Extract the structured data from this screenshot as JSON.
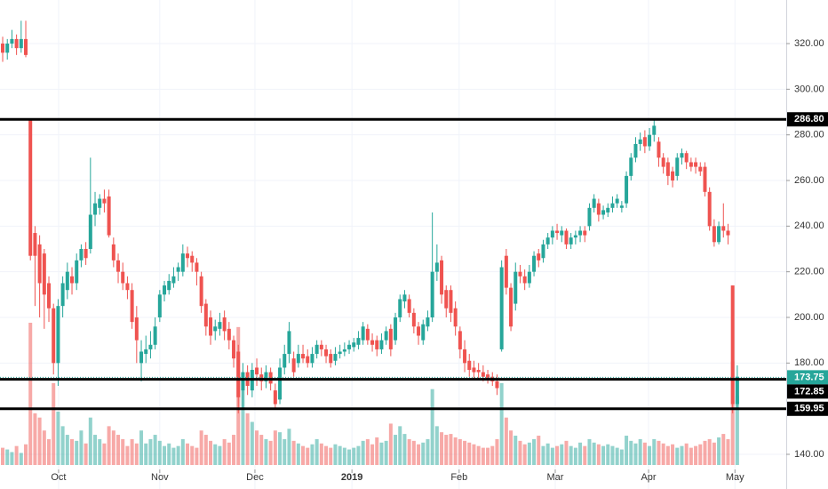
{
  "chart_data": {
    "type": "candlestick",
    "up_color": "#26a69a",
    "down_color": "#ef5350",
    "grid": true,
    "xlim": [
      -0.58,
      169.6
    ],
    "ylim": [
      124.8,
      339.1
    ],
    "xticks": [
      {
        "value": 12.1,
        "label": "Oct"
      },
      {
        "value": 34,
        "label": "Nov"
      },
      {
        "value": 54.6,
        "label": "Dec"
      },
      {
        "value": 75.6,
        "label": "2019"
      },
      {
        "value": 98.8,
        "label": "Feb"
      },
      {
        "value": 119.6,
        "label": "Mar"
      },
      {
        "value": 139.8,
        "label": "Apr"
      },
      {
        "value": 158.5,
        "label": "May"
      }
    ],
    "yticks": [
      {
        "value": 140,
        "label": "140.00"
      },
      {
        "value": 180,
        "label": "180.00"
      },
      {
        "value": 200,
        "label": "200.00"
      },
      {
        "value": 220,
        "label": "220.00"
      },
      {
        "value": 240,
        "label": "240.00"
      },
      {
        "value": 260,
        "label": "260.00"
      },
      {
        "value": 280,
        "label": "280.00"
      },
      {
        "value": 300,
        "label": "300.00"
      },
      {
        "value": 320,
        "label": "320.00"
      }
    ],
    "price_lines": [
      {
        "value": 286.8,
        "label": "286.80"
      },
      {
        "value": 172.85,
        "label": "172.85"
      },
      {
        "value": 159.95,
        "label": "159.95"
      }
    ],
    "last_price": {
      "value": 173.75,
      "label": "173.75"
    },
    "open": [
      320,
      316,
      320,
      322,
      318,
      322,
      287,
      237,
      232,
      228,
      215,
      204,
      180,
      205,
      212,
      218,
      215,
      225,
      230,
      230,
      245,
      248,
      252,
      253,
      232,
      225,
      220,
      215,
      212,
      200,
      180,
      184,
      186,
      188,
      200,
      210,
      212,
      215,
      220,
      220,
      228,
      227,
      224,
      218,
      206,
      200,
      194,
      195,
      200,
      195,
      190,
      185,
      168,
      176,
      168,
      178,
      175,
      172,
      176,
      168,
      164,
      178,
      184,
      182,
      180,
      184,
      183,
      180,
      184,
      188,
      186,
      184,
      181,
      184,
      185,
      186,
      187,
      188,
      190,
      195,
      190,
      190,
      186,
      190,
      195,
      190,
      200,
      207,
      208,
      202,
      196,
      190,
      196,
      200,
      220,
      225,
      212,
      212,
      204,
      194,
      186,
      181,
      178,
      177,
      176,
      175,
      174,
      172,
      186,
      227,
      213,
      206,
      220,
      218,
      215,
      220,
      228,
      226,
      232,
      235,
      238,
      236,
      238,
      232,
      235,
      236,
      238,
      240,
      248,
      250,
      245,
      246,
      248,
      250,
      248,
      250,
      262,
      270,
      276,
      279,
      275,
      280,
      277,
      270,
      268,
      264,
      262,
      270,
      272,
      268,
      268,
      266,
      266,
      255,
      240,
      233,
      240,
      238,
      214,
      162
    ],
    "high": [
      323,
      322,
      326,
      324,
      330,
      330,
      287,
      240,
      236,
      230,
      218,
      206,
      208,
      218,
      224,
      222,
      228,
      232,
      233,
      270,
      255,
      254,
      256,
      256,
      235,
      228,
      224,
      218,
      215,
      205,
      190,
      192,
      194,
      200,
      212,
      216,
      219,
      222,
      224,
      232,
      231,
      229,
      226,
      220,
      208,
      203,
      199,
      202,
      203,
      198,
      192,
      188,
      180,
      179,
      180,
      182,
      178,
      179,
      178,
      171,
      182,
      188,
      198,
      185,
      188,
      188,
      186,
      187,
      190,
      190,
      188,
      186,
      187,
      188,
      189,
      190,
      191,
      194,
      198,
      197,
      193,
      192,
      193,
      196,
      197,
      202,
      210,
      212,
      210,
      204,
      198,
      199,
      203,
      246,
      232,
      227,
      214,
      214,
      207,
      196,
      190,
      184,
      181,
      180,
      179,
      177,
      176,
      175,
      225,
      230,
      215,
      224,
      223,
      221,
      223,
      229,
      230,
      234,
      237,
      240,
      241,
      240,
      239,
      237,
      238,
      240,
      240,
      250,
      254,
      252,
      249,
      250,
      253,
      254,
      251,
      264,
      272,
      279,
      281,
      282,
      283,
      287,
      279,
      272,
      270,
      266,
      272,
      274,
      273,
      270,
      270,
      268,
      268,
      257,
      243,
      242,
      250,
      241,
      214,
      179
    ],
    "low": [
      312,
      313,
      318,
      315,
      316,
      314,
      225,
      205,
      200,
      195,
      198,
      175,
      170,
      200,
      208,
      210,
      212,
      222,
      223,
      228,
      240,
      245,
      246,
      235,
      222,
      215,
      212,
      208,
      195,
      180,
      172,
      180,
      182,
      186,
      198,
      207,
      210,
      213,
      216,
      218,
      222,
      220,
      214,
      202,
      192,
      188,
      190,
      192,
      190,
      186,
      178,
      158,
      160,
      166,
      165,
      170,
      168,
      169,
      168,
      160,
      162,
      175,
      180,
      174,
      178,
      180,
      178,
      178,
      182,
      183,
      180,
      178,
      179,
      182,
      183,
      184,
      185,
      186,
      188,
      188,
      185,
      183,
      184,
      188,
      183,
      188,
      198,
      204,
      200,
      193,
      188,
      188,
      194,
      198,
      216,
      206,
      200,
      198,
      192,
      182,
      176,
      174,
      173,
      173,
      172,
      171,
      170,
      166,
      185,
      210,
      194,
      203,
      215,
      212,
      213,
      218,
      222,
      224,
      230,
      232,
      234,
      233,
      230,
      230,
      232,
      233,
      233,
      238,
      246,
      242,
      243,
      244,
      246,
      248,
      246,
      248,
      260,
      268,
      273,
      272,
      273,
      277,
      266,
      263,
      258,
      257,
      260,
      267,
      265,
      264,
      263,
      262,
      253,
      238,
      231,
      232,
      235,
      232,
      158,
      160
    ],
    "close": [
      316,
      320,
      322,
      318,
      322,
      315,
      227,
      227,
      215,
      210,
      204,
      180,
      205,
      215,
      220,
      215,
      225,
      230,
      226,
      245,
      250,
      252,
      250,
      236,
      225,
      220,
      215,
      212,
      198,
      190,
      185,
      186,
      188,
      196,
      210,
      214,
      216,
      218,
      222,
      228,
      226,
      224,
      220,
      205,
      196,
      192,
      196,
      198,
      194,
      190,
      182,
      165,
      176,
      170,
      177,
      175,
      172,
      176,
      171,
      162,
      178,
      184,
      194,
      176,
      184,
      182,
      180,
      184,
      188,
      186,
      183,
      180,
      184,
      185,
      186,
      188,
      189,
      191,
      196,
      190,
      188,
      186,
      190,
      194,
      186,
      200,
      208,
      210,
      202,
      196,
      192,
      197,
      200,
      220,
      224,
      210,
      204,
      202,
      196,
      186,
      180,
      177,
      176,
      176,
      174,
      173,
      172,
      169,
      222,
      213,
      196,
      220,
      218,
      215,
      220,
      227,
      225,
      232,
      235,
      238,
      237,
      238,
      232,
      235,
      236,
      238,
      236,
      248,
      252,
      245,
      247,
      248,
      250,
      252,
      249,
      262,
      270,
      276,
      278,
      275,
      280,
      284,
      270,
      266,
      262,
      260,
      270,
      272,
      268,
      266,
      266,
      264,
      255,
      240,
      233,
      240,
      238,
      236,
      162,
      174
    ],
    "volume": [
      20,
      18,
      15,
      22,
      14,
      24,
      165,
      60,
      55,
      40,
      30,
      95,
      62,
      45,
      35,
      30,
      28,
      40,
      25,
      55,
      35,
      30,
      25,
      45,
      40,
      35,
      30,
      22,
      30,
      25,
      40,
      25,
      30,
      35,
      28,
      22,
      25,
      20,
      22,
      30,
      25,
      22,
      20,
      40,
      35,
      28,
      24,
      22,
      30,
      26,
      35,
      160,
      95,
      60,
      50,
      40,
      35,
      30,
      28,
      40,
      38,
      30,
      42,
      28,
      25,
      22,
      20,
      24,
      30,
      25,
      22,
      20,
      24,
      22,
      20,
      18,
      20,
      22,
      28,
      30,
      24,
      32,
      26,
      28,
      48,
      35,
      45,
      36,
      30,
      28,
      24,
      26,
      30,
      88,
      45,
      38,
      35,
      36,
      32,
      30,
      28,
      26,
      24,
      22,
      20,
      20,
      22,
      30,
      95,
      55,
      40,
      34,
      28,
      24,
      26,
      30,
      34,
      22,
      25,
      20,
      22,
      24,
      28,
      22,
      20,
      26,
      22,
      30,
      26,
      24,
      22,
      24,
      22,
      20,
      18,
      34,
      28,
      25,
      30,
      26,
      22,
      30,
      28,
      25,
      22,
      24,
      20,
      22,
      25,
      20,
      22,
      24,
      28,
      30,
      26,
      32,
      36,
      30,
      120,
      80
    ]
  }
}
